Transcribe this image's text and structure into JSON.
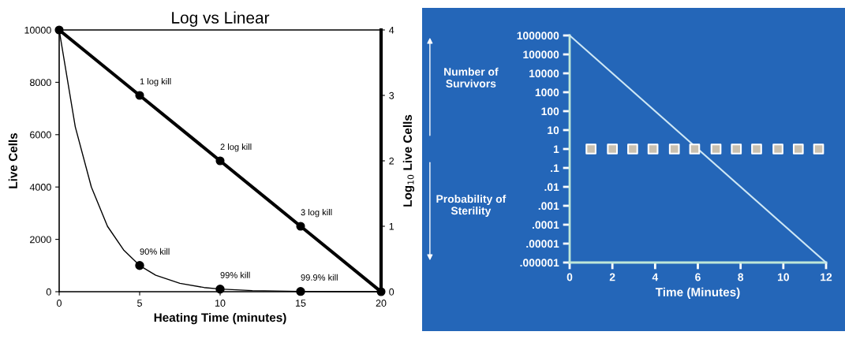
{
  "chart_data": [
    {
      "type": "line",
      "title": "Log vs Linear",
      "xlabel": "Heating Time (minutes)",
      "ylabel": "Live Cells",
      "y2label": "Log$_{10}$ Live Cells",
      "xlim": [
        0,
        20
      ],
      "xticks": [
        0,
        5,
        10,
        15,
        20
      ],
      "ylim": [
        0,
        10000
      ],
      "yticks": [
        0,
        2000,
        4000,
        6000,
        8000,
        10000
      ],
      "y2lim": [
        0,
        4
      ],
      "y2ticks": [
        0,
        1,
        2,
        3,
        4
      ],
      "grid": false,
      "series": [
        {
          "type": "line",
          "color": "#000000",
          "marker": "none",
          "x": [
            0,
            1,
            2,
            3,
            4,
            5,
            6,
            7.5,
            9,
            10,
            12,
            15,
            20
          ],
          "values": [
            10000,
            6300,
            4000,
            2500,
            1600,
            1000,
            630,
            320,
            160,
            100,
            40,
            10,
            0
          ]
        },
        {
          "type": "scatter",
          "color": "#000000",
          "marker": "circle",
          "x": [
            5,
            10,
            15
          ],
          "values": [
            1000,
            100,
            10
          ]
        },
        {
          "type": "line",
          "axis": "y2",
          "color": "#000000",
          "marker": "circle",
          "x": [
            0,
            5,
            10,
            15,
            20
          ],
          "values": [
            4,
            3,
            2,
            1,
            0
          ]
        }
      ],
      "annotations": [
        {
          "text": "1 log kill",
          "x": 5,
          "y": 7500
        },
        {
          "text": "2 log kill",
          "x": 10,
          "y": 5000
        },
        {
          "text": "3 log kill",
          "x": 15,
          "y": 2500
        },
        {
          "text": "90% kill",
          "x": 5,
          "y": 1000
        },
        {
          "text": "99% kill",
          "x": 10,
          "y": 100
        },
        {
          "text": "99.9% kill",
          "x": 15,
          "y": 10
        }
      ]
    },
    {
      "type": "line",
      "xlabel": "Time (Minutes)",
      "log": "y",
      "grid": false,
      "xlim": [
        0,
        12
      ],
      "xticks": [
        0,
        2,
        4,
        6,
        8,
        10,
        12
      ],
      "ylim": [
        1e-06,
        1000000
      ],
      "yticks": [
        {
          "value": 1000000,
          "label": "1000000"
        },
        {
          "value": 100000,
          "label": "100000"
        },
        {
          "value": 10000,
          "label": "10000"
        },
        {
          "value": 1000,
          "label": "1000"
        },
        {
          "value": 100,
          "label": "100"
        },
        {
          "value": 10,
          "label": "10"
        },
        {
          "value": 1,
          "label": "1"
        },
        {
          "value": 0.1,
          "label": ".1"
        },
        {
          "value": 0.01,
          "label": ".01"
        },
        {
          "value": 0.001,
          "label": ".001"
        },
        {
          "value": 0.0001,
          "label": ".0001"
        },
        {
          "value": 1e-05,
          "label": ".00001"
        },
        {
          "value": 1e-06,
          "label": ".000001"
        }
      ],
      "series": [
        {
          "type": "line",
          "color": "#cfe8f5",
          "marker": "none",
          "x": [
            0,
            12
          ],
          "values": [
            1000000,
            1e-06
          ]
        },
        {
          "type": "scatter",
          "color": "#c9c0b0",
          "marker": "square",
          "x": [
            1,
            2,
            2.95,
            3.9,
            4.9,
            5.85,
            6.85,
            7.8,
            8.75,
            9.75,
            10.7,
            11.65
          ],
          "values": [
            1,
            1,
            1,
            1,
            1,
            1,
            1,
            1,
            1,
            1,
            1,
            1
          ]
        }
      ],
      "annotations": [
        "Number of Survivors",
        "Probability of Sterility"
      ]
    }
  ]
}
